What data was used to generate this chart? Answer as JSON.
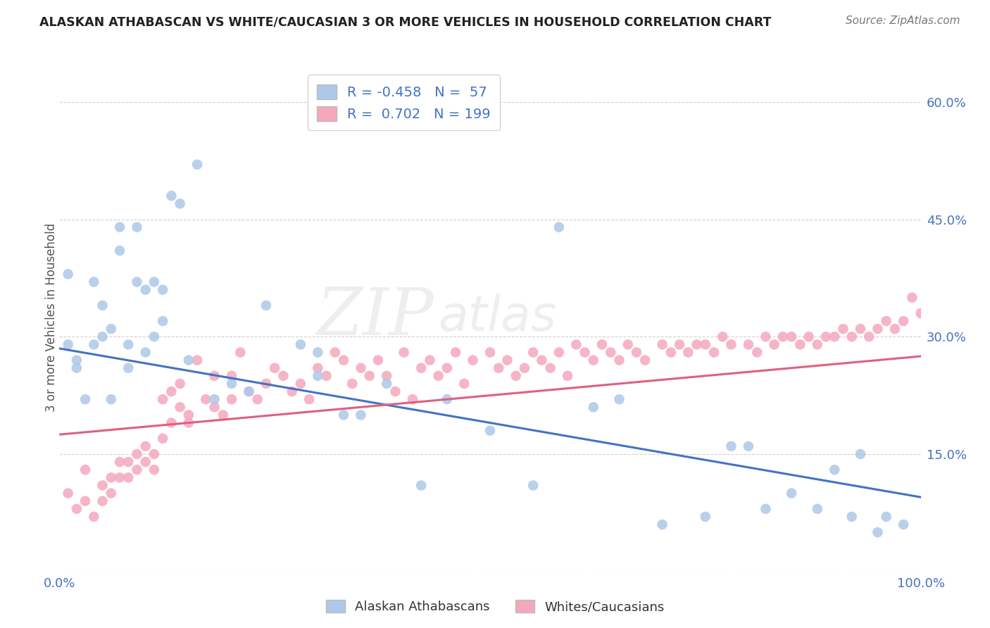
{
  "title": "ALASKAN ATHABASCAN VS WHITE/CAUCASIAN 3 OR MORE VEHICLES IN HOUSEHOLD CORRELATION CHART",
  "source": "Source: ZipAtlas.com",
  "ylabel": "3 or more Vehicles in Household",
  "watermark_zip": "ZIP",
  "watermark_atlas": "atlas",
  "legend_blue_r": "-0.458",
  "legend_blue_n": "57",
  "legend_pink_r": "0.702",
  "legend_pink_n": "199",
  "legend_blue_label": "Alaskan Athabascans",
  "legend_pink_label": "Whites/Caucasians",
  "xlim": [
    0.0,
    1.0
  ],
  "ylim": [
    0.0,
    0.65
  ],
  "yticks": [
    0.0,
    0.15,
    0.3,
    0.45,
    0.6
  ],
  "yticklabels": [
    "",
    "15.0%",
    "30.0%",
    "45.0%",
    "60.0%"
  ],
  "xtick_left": "0.0%",
  "xtick_right": "100.0%",
  "blue_color": "#adc8e8",
  "pink_color": "#f5a8bc",
  "blue_line_color": "#4472c4",
  "pink_line_color": "#e06080",
  "tick_color": "#4472c4",
  "grid_color": "#cccccc",
  "bg_color": "#ffffff",
  "blue_line_start_y": 0.285,
  "blue_line_end_y": 0.095,
  "pink_line_start_y": 0.175,
  "pink_line_end_y": 0.275,
  "blue_x": [
    0.01,
    0.01,
    0.02,
    0.02,
    0.03,
    0.04,
    0.04,
    0.05,
    0.05,
    0.06,
    0.06,
    0.07,
    0.07,
    0.08,
    0.08,
    0.09,
    0.09,
    0.1,
    0.1,
    0.11,
    0.11,
    0.12,
    0.12,
    0.13,
    0.14,
    0.15,
    0.16,
    0.18,
    0.2,
    0.22,
    0.24,
    0.28,
    0.3,
    0.3,
    0.33,
    0.35,
    0.38,
    0.42,
    0.45,
    0.5,
    0.55,
    0.58,
    0.62,
    0.65,
    0.7,
    0.75,
    0.78,
    0.8,
    0.82,
    0.85,
    0.88,
    0.9,
    0.92,
    0.93,
    0.95,
    0.96,
    0.98
  ],
  "blue_y": [
    0.29,
    0.38,
    0.27,
    0.26,
    0.22,
    0.37,
    0.29,
    0.34,
    0.3,
    0.31,
    0.22,
    0.44,
    0.41,
    0.29,
    0.26,
    0.44,
    0.37,
    0.36,
    0.28,
    0.37,
    0.3,
    0.36,
    0.32,
    0.48,
    0.47,
    0.27,
    0.52,
    0.22,
    0.24,
    0.23,
    0.34,
    0.29,
    0.28,
    0.25,
    0.2,
    0.2,
    0.24,
    0.11,
    0.22,
    0.18,
    0.11,
    0.44,
    0.21,
    0.22,
    0.06,
    0.07,
    0.16,
    0.16,
    0.08,
    0.1,
    0.08,
    0.13,
    0.07,
    0.15,
    0.05,
    0.07,
    0.06
  ],
  "pink_x": [
    0.01,
    0.02,
    0.03,
    0.03,
    0.04,
    0.05,
    0.05,
    0.06,
    0.06,
    0.07,
    0.07,
    0.08,
    0.08,
    0.09,
    0.09,
    0.1,
    0.1,
    0.11,
    0.11,
    0.12,
    0.12,
    0.13,
    0.13,
    0.14,
    0.14,
    0.15,
    0.15,
    0.16,
    0.17,
    0.18,
    0.18,
    0.19,
    0.2,
    0.2,
    0.21,
    0.22,
    0.23,
    0.24,
    0.25,
    0.26,
    0.27,
    0.28,
    0.29,
    0.3,
    0.31,
    0.32,
    0.33,
    0.34,
    0.35,
    0.36,
    0.37,
    0.38,
    0.39,
    0.4,
    0.41,
    0.42,
    0.43,
    0.44,
    0.45,
    0.46,
    0.47,
    0.48,
    0.5,
    0.51,
    0.52,
    0.53,
    0.54,
    0.55,
    0.56,
    0.57,
    0.58,
    0.59,
    0.6,
    0.61,
    0.62,
    0.63,
    0.64,
    0.65,
    0.66,
    0.67,
    0.68,
    0.7,
    0.71,
    0.72,
    0.73,
    0.74,
    0.75,
    0.76,
    0.77,
    0.78,
    0.8,
    0.81,
    0.82,
    0.83,
    0.84,
    0.85,
    0.86,
    0.87,
    0.88,
    0.89,
    0.9,
    0.91,
    0.92,
    0.93,
    0.94,
    0.95,
    0.96,
    0.97,
    0.98,
    0.99,
    1.0
  ],
  "pink_y": [
    0.1,
    0.08,
    0.09,
    0.13,
    0.07,
    0.11,
    0.09,
    0.12,
    0.1,
    0.14,
    0.12,
    0.14,
    0.12,
    0.15,
    0.13,
    0.16,
    0.14,
    0.15,
    0.13,
    0.22,
    0.17,
    0.23,
    0.19,
    0.24,
    0.21,
    0.2,
    0.19,
    0.27,
    0.22,
    0.25,
    0.21,
    0.2,
    0.22,
    0.25,
    0.28,
    0.23,
    0.22,
    0.24,
    0.26,
    0.25,
    0.23,
    0.24,
    0.22,
    0.26,
    0.25,
    0.28,
    0.27,
    0.24,
    0.26,
    0.25,
    0.27,
    0.25,
    0.23,
    0.28,
    0.22,
    0.26,
    0.27,
    0.25,
    0.26,
    0.28,
    0.24,
    0.27,
    0.28,
    0.26,
    0.27,
    0.25,
    0.26,
    0.28,
    0.27,
    0.26,
    0.28,
    0.25,
    0.29,
    0.28,
    0.27,
    0.29,
    0.28,
    0.27,
    0.29,
    0.28,
    0.27,
    0.29,
    0.28,
    0.29,
    0.28,
    0.29,
    0.29,
    0.28,
    0.3,
    0.29,
    0.29,
    0.28,
    0.3,
    0.29,
    0.3,
    0.3,
    0.29,
    0.3,
    0.29,
    0.3,
    0.3,
    0.31,
    0.3,
    0.31,
    0.3,
    0.31,
    0.32,
    0.31,
    0.32,
    0.35,
    0.33
  ]
}
